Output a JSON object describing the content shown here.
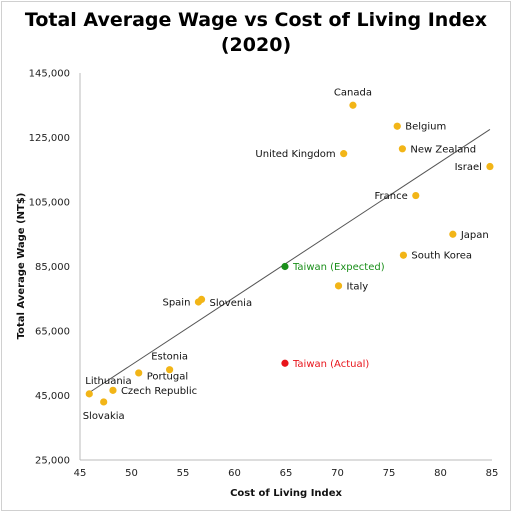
{
  "chart_data": {
    "type": "scatter",
    "title_lines": [
      "Total Average Wage vs Cost of Living Index",
      "(2020)"
    ],
    "xlabel": "Cost of Living Index",
    "ylabel": "Total Average Wage (NT$)",
    "xlim": [
      45,
      85
    ],
    "ylim": [
      25000,
      145000
    ],
    "xticks": [
      45,
      50,
      55,
      60,
      65,
      70,
      75,
      80,
      85
    ],
    "yticks": [
      25000,
      45000,
      65000,
      85000,
      105000,
      125000,
      145000
    ],
    "ytick_labels": [
      "25,000",
      "45,000",
      "65,000",
      "85,000",
      "105,000",
      "125,000",
      "145,000"
    ],
    "grid": false,
    "colors": {
      "default": "#f2b517",
      "expected": "#1a8f1a",
      "actual": "#e8141b",
      "trendline": "#555555"
    },
    "trendline": {
      "x": [
        45.8,
        84.8
      ],
      "y": [
        45700,
        127500
      ]
    },
    "points": [
      {
        "label": "Canada",
        "x": 71.5,
        "y": 135000,
        "pos": "above"
      },
      {
        "label": "Belgium",
        "x": 75.8,
        "y": 128500,
        "pos": "right"
      },
      {
        "label": "New Zealand",
        "x": 76.3,
        "y": 121500,
        "pos": "right"
      },
      {
        "label": "United Kingdom",
        "x": 70.6,
        "y": 120000,
        "pos": "left"
      },
      {
        "label": "Israel",
        "x": 84.8,
        "y": 116000,
        "pos": "left"
      },
      {
        "label": "France",
        "x": 77.6,
        "y": 107000,
        "pos": "left"
      },
      {
        "label": "Japan",
        "x": 81.2,
        "y": 95000,
        "pos": "right"
      },
      {
        "label": "South Korea",
        "x": 76.4,
        "y": 88500,
        "pos": "right"
      },
      {
        "label": "Taiwan (Expected)",
        "x": 64.9,
        "y": 85000,
        "pos": "right",
        "color": "expected"
      },
      {
        "label": "Italy",
        "x": 70.1,
        "y": 79000,
        "pos": "right"
      },
      {
        "label": "Spain",
        "x": 56.5,
        "y": 74000,
        "pos": "left"
      },
      {
        "label": "Slovenia",
        "x": 56.8,
        "y": 74800,
        "pos": "right-low"
      },
      {
        "label": "Taiwan (Actual)",
        "x": 64.9,
        "y": 55000,
        "pos": "right",
        "color": "actual"
      },
      {
        "label": "Estonia",
        "x": 53.7,
        "y": 53000,
        "pos": "above"
      },
      {
        "label": "Portugal",
        "x": 50.7,
        "y": 52000,
        "pos": "right-low"
      },
      {
        "label": "Lithuania",
        "x": 45.9,
        "y": 45500,
        "pos": "above-left"
      },
      {
        "label": "Czech Republic",
        "x": 48.2,
        "y": 46600,
        "pos": "right"
      },
      {
        "label": "Slovakia",
        "x": 47.3,
        "y": 43000,
        "pos": "below"
      }
    ]
  }
}
